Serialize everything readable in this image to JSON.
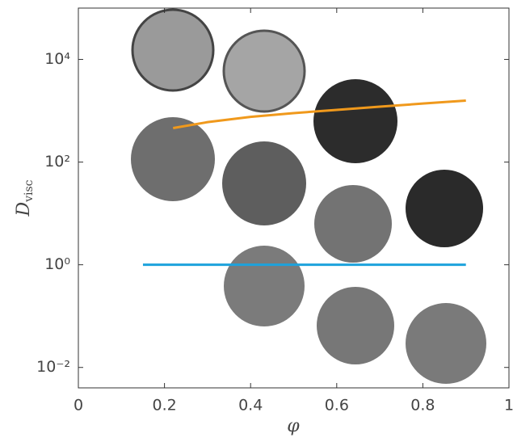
{
  "chart_data": {
    "type": "line",
    "xlabel": "φ",
    "ylabel": "D",
    "ylabel_subscript": "visc",
    "log_y": true,
    "xlim": [
      0,
      1
    ],
    "xticks": [
      0,
      0.2,
      0.4,
      0.6,
      0.8,
      1
    ],
    "ylim": [
      0.004,
      100000
    ],
    "yticks": [
      {
        "value": 0.01,
        "label": "10⁻²"
      },
      {
        "value": 1,
        "label": "10⁰"
      },
      {
        "value": 100,
        "label": "10²"
      },
      {
        "value": 10000,
        "label": "10⁴"
      }
    ],
    "series": [
      {
        "color": "#f0991c",
        "x": [
          0.22,
          0.3,
          0.4,
          0.5,
          0.6,
          0.7,
          0.8,
          0.9
        ],
        "values": [
          460,
          600,
          760,
          900,
          1040,
          1200,
          1380,
          1580
        ]
      },
      {
        "color": "#1da2dc",
        "x": [
          0.15,
          0.9
        ],
        "values": [
          1,
          1
        ]
      }
    ]
  }
}
